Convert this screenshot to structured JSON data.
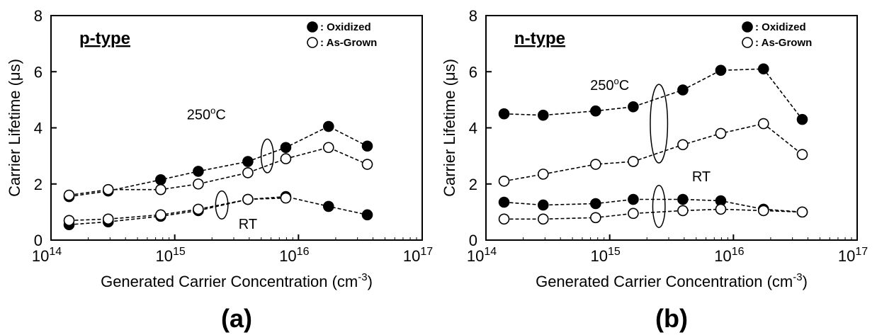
{
  "chart_data": [
    {
      "type": "scatter",
      "panel_label": "(a)",
      "type_label": "p-type",
      "xlabel": "Generated Carrier Concentration (cm-3)",
      "ylabel": "Carrier Lifetime (μs)",
      "xscale": "log",
      "xlim": [
        100000000000000.0,
        1e+17
      ],
      "ylim": [
        0,
        8
      ],
      "x_ticks": [
        "14",
        "15",
        "16",
        "17"
      ],
      "y_ticks": [
        "0",
        "2",
        "4",
        "6",
        "8"
      ],
      "legend": [
        {
          "marker": "filled",
          "label": ": Oxidized"
        },
        {
          "marker": "open",
          "label": ": As-Grown"
        }
      ],
      "series": [
        {
          "group": "250oC",
          "marker": "filled",
          "x": [
            140000000000000.0,
            290000000000000.0,
            770000000000000.0,
            1550000000000000.0,
            3900000000000000.0,
            7900000000000000.0,
            1.75e+16,
            3.6e+16
          ],
          "y": [
            1.55,
            1.75,
            2.15,
            2.45,
            2.8,
            3.3,
            4.05,
            3.35
          ]
        },
        {
          "group": "250oC",
          "marker": "open",
          "x": [
            140000000000000.0,
            290000000000000.0,
            770000000000000.0,
            1550000000000000.0,
            3900000000000000.0,
            7900000000000000.0,
            1.75e+16,
            3.6e+16
          ],
          "y": [
            1.6,
            1.8,
            1.8,
            2.0,
            2.4,
            2.9,
            3.3,
            2.7
          ]
        },
        {
          "group": "RT",
          "marker": "filled",
          "x": [
            140000000000000.0,
            290000000000000.0,
            770000000000000.0,
            1550000000000000.0,
            3900000000000000.0,
            7900000000000000.0,
            1.75e+16,
            3.6e+16
          ],
          "y": [
            0.55,
            0.65,
            0.85,
            1.05,
            1.45,
            1.55,
            1.2,
            0.9
          ]
        },
        {
          "group": "RT",
          "marker": "open",
          "x": [
            140000000000000.0,
            290000000000000.0,
            770000000000000.0,
            1550000000000000.0,
            3900000000000000.0,
            7900000000000000.0
          ],
          "y": [
            0.7,
            0.75,
            0.9,
            1.1,
            1.45,
            1.5
          ]
        }
      ],
      "annotations": [
        {
          "text": "250oC",
          "x": 5600000000000000.0,
          "y": 3.0,
          "rx_dec": 0.05,
          "ry": 0.6,
          "text_x": 1800000000000000.0,
          "text_y": 4.3
        },
        {
          "text": "RT",
          "x": 2400000000000000.0,
          "y": 1.25,
          "rx_dec": 0.05,
          "ry": 0.5,
          "text_x": 3900000000000000.0,
          "text_y": 0.4
        }
      ]
    },
    {
      "type": "scatter",
      "panel_label": "(b)",
      "type_label": "n-type",
      "xlabel": "Generated Carrier Concentration (cm-3)",
      "ylabel": "Carrier Lifetime (μs)",
      "xscale": "log",
      "xlim": [
        100000000000000.0,
        1e+17
      ],
      "ylim": [
        0,
        8
      ],
      "x_ticks": [
        "14",
        "15",
        "16",
        "17"
      ],
      "y_ticks": [
        "0",
        "2",
        "4",
        "6",
        "8"
      ],
      "legend": [
        {
          "marker": "filled",
          "label": ": Oxidized"
        },
        {
          "marker": "open",
          "label": ": As-Grown"
        }
      ],
      "series": [
        {
          "group": "250oC",
          "marker": "filled",
          "x": [
            140000000000000.0,
            290000000000000.0,
            770000000000000.0,
            1550000000000000.0,
            3900000000000000.0,
            7900000000000000.0,
            1.75e+16,
            3.6e+16
          ],
          "y": [
            4.5,
            4.45,
            4.6,
            4.75,
            5.35,
            6.05,
            6.1,
            4.3
          ]
        },
        {
          "group": "250oC",
          "marker": "open",
          "x": [
            140000000000000.0,
            290000000000000.0,
            770000000000000.0,
            1550000000000000.0,
            3900000000000000.0,
            7900000000000000.0,
            1.75e+16,
            3.6e+16
          ],
          "y": [
            2.1,
            2.35,
            2.7,
            2.8,
            3.4,
            3.8,
            4.15,
            3.05
          ]
        },
        {
          "group": "RT",
          "marker": "filled",
          "x": [
            140000000000000.0,
            290000000000000.0,
            770000000000000.0,
            1550000000000000.0,
            3900000000000000.0,
            7900000000000000.0,
            1.75e+16,
            3.6e+16
          ],
          "y": [
            1.35,
            1.25,
            1.3,
            1.45,
            1.45,
            1.4,
            1.1,
            1.0
          ]
        },
        {
          "group": "RT",
          "marker": "open",
          "x": [
            140000000000000.0,
            290000000000000.0,
            770000000000000.0,
            1550000000000000.0,
            3900000000000000.0,
            7900000000000000.0,
            1.75e+16,
            3.6e+16
          ],
          "y": [
            0.75,
            0.75,
            0.8,
            0.95,
            1.05,
            1.1,
            1.05,
            1.0
          ]
        }
      ],
      "annotations": [
        {
          "text": "250oC",
          "x": 2500000000000000.0,
          "y": 4.15,
          "rx_dec": 0.07,
          "ry": 1.4,
          "text_x": 1000000000000000.0,
          "text_y": 5.35
        },
        {
          "text": "RT",
          "x": 2500000000000000.0,
          "y": 1.2,
          "rx_dec": 0.05,
          "ry": 0.75,
          "text_x": 5500000000000000.0,
          "text_y": 2.1
        }
      ]
    }
  ]
}
